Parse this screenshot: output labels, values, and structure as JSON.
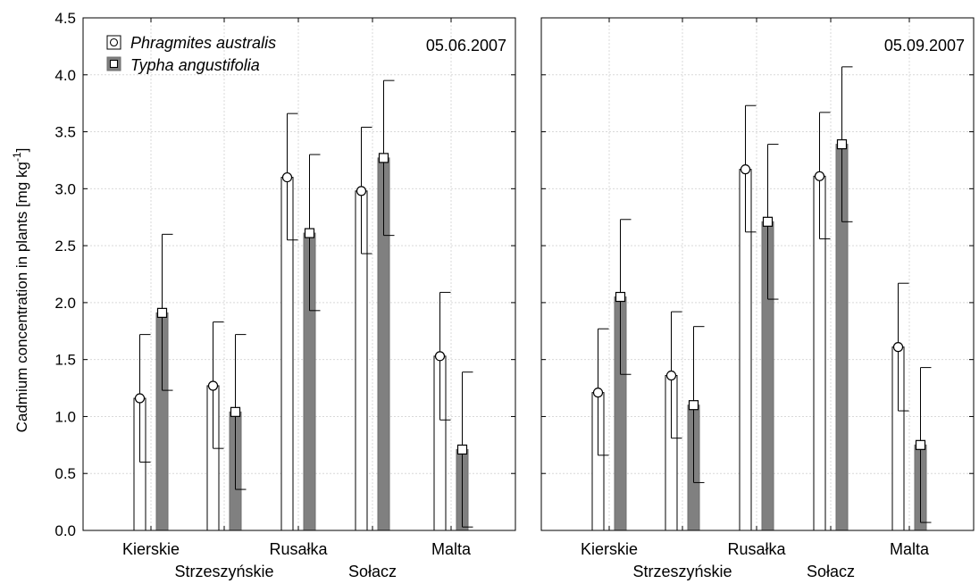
{
  "chart_data": {
    "type": "bar",
    "ylabel_main": "Cadmium concentration in plants [mg kg",
    "ylabel_sup": "-1",
    "ylabel_end": "]",
    "ylim": [
      0,
      4.5
    ],
    "yticks": [
      "0.0",
      "0.5",
      "1.0",
      "1.5",
      "2.0",
      "2.5",
      "3.0",
      "3.5",
      "4.0",
      "4.5"
    ],
    "categories": [
      "Kierskie",
      "Strzeszyńskie",
      "Rusałka",
      "Sołacz",
      "Malta"
    ],
    "grid": true,
    "legend_position": "top-left",
    "colors": {
      "phragmites": "#ffffff",
      "typha": "#808080",
      "axis": "#000000",
      "grid": "#d9d9d9"
    },
    "legend": [
      {
        "name": "Phragmites australis",
        "marker": "circle"
      },
      {
        "name": "Typha angustifolia",
        "marker": "square"
      }
    ],
    "panels": [
      {
        "date": "05.06.2007",
        "series": [
          {
            "name": "Phragmites australis",
            "values": [
              1.16,
              1.27,
              3.1,
              2.98,
              1.53
            ],
            "err_low": [
              0.6,
              0.72,
              2.55,
              2.43,
              0.97
            ],
            "err_high": [
              1.72,
              1.83,
              3.66,
              3.54,
              2.09
            ]
          },
          {
            "name": "Typha angustifolia",
            "values": [
              1.91,
              1.04,
              2.61,
              3.27,
              0.71
            ],
            "err_low": [
              1.23,
              0.36,
              1.93,
              2.59,
              0.03
            ],
            "err_high": [
              2.6,
              1.72,
              3.3,
              3.95,
              1.39
            ]
          }
        ]
      },
      {
        "date": "05.09.2007",
        "series": [
          {
            "name": "Phragmites australis",
            "values": [
              1.21,
              1.36,
              3.17,
              3.11,
              1.61
            ],
            "err_low": [
              0.66,
              0.81,
              2.62,
              2.56,
              1.05
            ],
            "err_high": [
              1.77,
              1.92,
              3.73,
              3.67,
              2.17
            ]
          },
          {
            "name": "Typha angustifolia",
            "values": [
              2.05,
              1.1,
              2.71,
              3.39,
              0.75
            ],
            "err_low": [
              1.37,
              0.42,
              2.03,
              2.71,
              0.07
            ],
            "err_high": [
              2.73,
              1.79,
              3.39,
              4.07,
              1.43
            ]
          }
        ]
      }
    ]
  }
}
